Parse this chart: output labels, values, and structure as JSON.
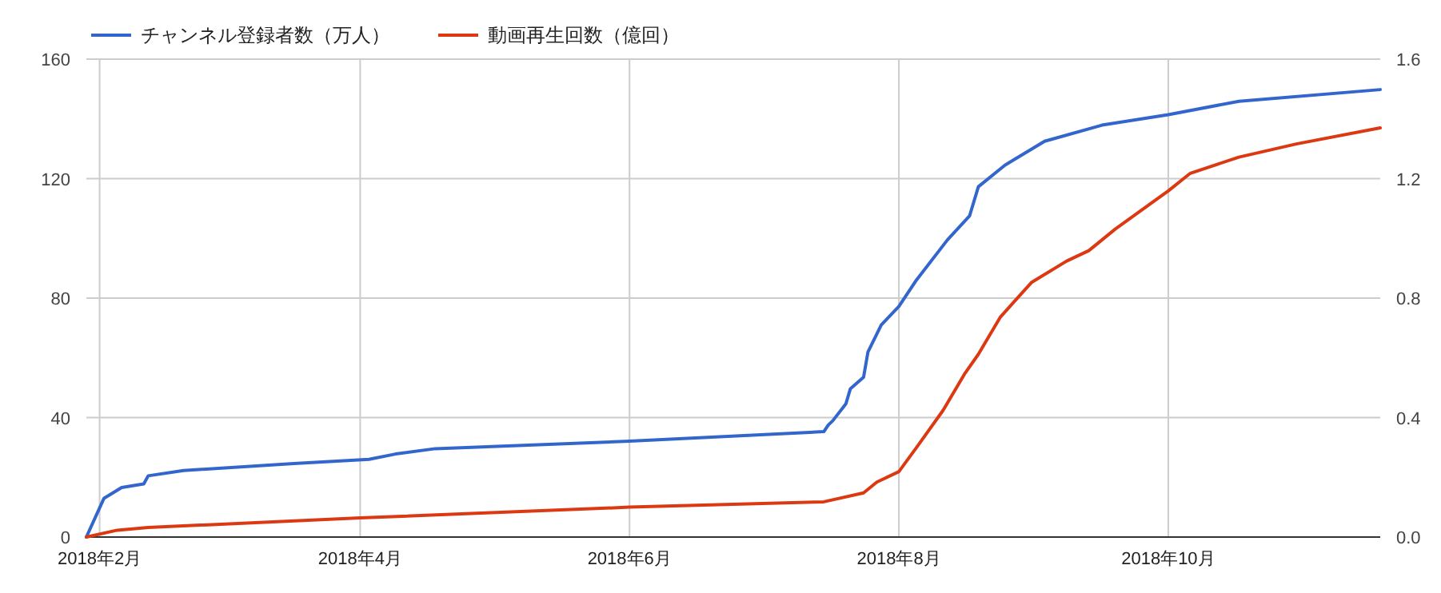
{
  "chart_data": {
    "type": "line",
    "legend": "top left",
    "grid": true,
    "line_style": "solid",
    "marker": "none",
    "xlim": [
      "2018-01-29",
      "2018-11-18"
    ],
    "xticks": [
      {
        "value": "2018-02-01",
        "label": "2018年2月"
      },
      {
        "value": "2018-04-01",
        "label": "2018年4月"
      },
      {
        "value": "2018-06-01",
        "label": "2018年6月"
      },
      {
        "value": "2018-08-01",
        "label": "2018年8月"
      },
      {
        "value": "2018-10-01",
        "label": "2018年10月"
      }
    ],
    "ylim": [
      0,
      160
    ],
    "yticks": [
      0,
      40,
      80,
      120,
      160
    ],
    "y2lim": [
      0,
      1.6
    ],
    "y2ticks": [
      {
        "value": 0,
        "label": "0.0"
      },
      0.4,
      0.8,
      1.2,
      1.6
    ],
    "series": [
      {
        "name": "チャンネル登録者数（万人）",
        "color": "#3366cc",
        "x": [
          "2018-01-29",
          "2018-02-02",
          "2018-02-06",
          "2018-02-11",
          "2018-02-12",
          "2018-02-20",
          "2018-03-17",
          "2018-04-03",
          "2018-04-09",
          "2018-04-18",
          "2018-06-01",
          "2018-07-15",
          "2018-07-16",
          "2018-07-17",
          "2018-07-20",
          "2018-07-21",
          "2018-07-24",
          "2018-07-25",
          "2018-07-28",
          "2018-08-01",
          "2018-08-05",
          "2018-08-12",
          "2018-08-17",
          "2018-08-19",
          "2018-08-25",
          "2018-09-03",
          "2018-09-16",
          "2018-10-01",
          "2018-10-17",
          "2018-11-18"
        ],
        "values": [
          0,
          13,
          16.6,
          17.8,
          20.5,
          22.3,
          24.6,
          26,
          27.8,
          29.6,
          32.1,
          35.3,
          37.5,
          38.9,
          44.6,
          49.6,
          53.5,
          62,
          71,
          77.2,
          86.1,
          99.5,
          107.5,
          117.3,
          124.5,
          132.5,
          137.9,
          141.4,
          145.9,
          149.8
        ]
      },
      {
        "name": "動画再生回数（億回）",
        "color": "#dc3912",
        "axis": "y2",
        "x": [
          "2018-01-29",
          "2018-02-05",
          "2018-02-12",
          "2018-04-01",
          "2018-06-01",
          "2018-07-15",
          "2018-07-24",
          "2018-07-27",
          "2018-08-01",
          "2018-08-05",
          "2018-08-11",
          "2018-08-16",
          "2018-08-19",
          "2018-08-24",
          "2018-08-31",
          "2018-09-08",
          "2018-09-13",
          "2018-09-19",
          "2018-10-01",
          "2018-10-06",
          "2018-10-17",
          "2018-10-30",
          "2018-11-18"
        ],
        "values": [
          0,
          0.023,
          0.032,
          0.064,
          0.1,
          0.118,
          0.148,
          0.184,
          0.219,
          0.3,
          0.424,
          0.549,
          0.612,
          0.737,
          0.852,
          0.924,
          0.959,
          1.031,
          1.159,
          1.218,
          1.272,
          1.316,
          1.37
        ]
      }
    ]
  }
}
